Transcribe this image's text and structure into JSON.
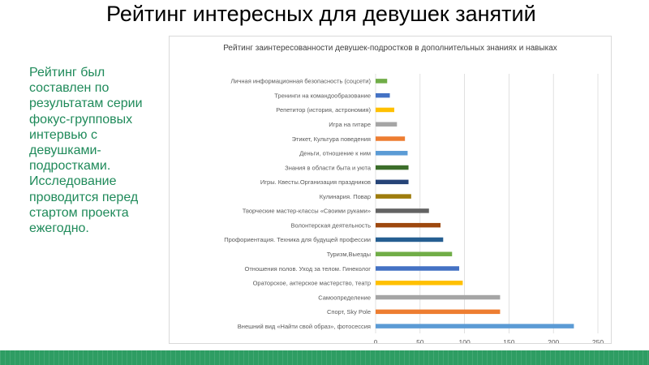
{
  "slide": {
    "title": "Рейтинг интересных для девушек занятий",
    "body": "Рейтинг был составлен по результатам серии фокус-групповых интервью с девушками-подростками. Исследование проводится перед стартом проекта ежегодно."
  },
  "colors": {
    "text_green": "#1f8a5a",
    "footer_band": "#2e9d63"
  },
  "chart_data": {
    "type": "bar",
    "orientation": "horizontal",
    "title": "Рейтинг заинтересованности девушек-подростков в дополнительных знаниях и навыках",
    "xlim": [
      0,
      250
    ],
    "xticks": [
      0,
      50,
      100,
      150,
      200,
      250
    ],
    "grid": true,
    "legend": "none",
    "categories": [
      "Личная информационная безопасность (соцсети)",
      "Тренинги на командообразование",
      "Репетитор (история, астрономия)",
      "Игра на гитаре",
      "Этикет, Культура поведения",
      "Деньги, отношение к ним",
      "Знания в области быта и уюта",
      "Игры. Квесты.Организация праздников",
      "Кулинария. Повар",
      "Творческие мастер-классы «Своими руками»",
      "Волонтерская деятельность",
      "Профориентация. Техника для будущей профессии",
      "Туризм,Выезды",
      "Отношения полов. Уход за телом. Гинеколог",
      "Ораторское, актерское мастерство, театр",
      "Самоопределение",
      "Спорт, Sky Pole",
      "Внешний вид «Найти свой образ», фотосессия"
    ],
    "values": [
      13,
      16,
      21,
      24,
      33,
      36,
      37,
      37,
      40,
      60,
      73,
      76,
      86,
      94,
      98,
      140,
      140,
      223
    ],
    "colors": [
      "#70ad47",
      "#4472c4",
      "#ffc000",
      "#a5a5a5",
      "#ed7d31",
      "#5b9bd5",
      "#3c6e2a",
      "#264478",
      "#9e7c0c",
      "#636363",
      "#9e480e",
      "#255e91",
      "#70ad47",
      "#4472c4",
      "#ffc000",
      "#a5a5a5",
      "#ed7d31",
      "#5b9bd5"
    ]
  }
}
